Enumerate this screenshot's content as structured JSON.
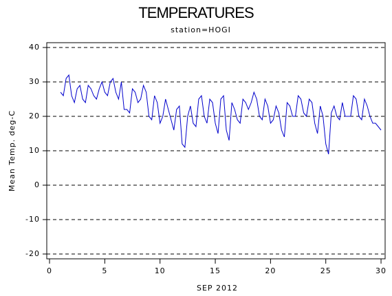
{
  "chart_data": {
    "type": "line",
    "title": "TEMPERATURES",
    "subtitle": "station=HOGI",
    "x_label": "SEP 2012",
    "y_label": "Mean Temp. deg-C",
    "xlim": [
      -0.25,
      30.37
    ],
    "ylim": [
      -21.4,
      41.4
    ],
    "xticks": [
      0,
      5,
      10,
      15,
      20,
      25,
      30
    ],
    "yticks": [
      -20,
      -10,
      0,
      10,
      20,
      30,
      40
    ],
    "grid": true,
    "x": [
      1,
      1.25,
      1.5,
      1.75,
      2,
      2.25,
      2.5,
      2.75,
      3,
      3.25,
      3.5,
      3.75,
      4,
      4.25,
      4.5,
      4.75,
      5,
      5.25,
      5.5,
      5.75,
      6,
      6.25,
      6.5,
      6.75,
      7,
      7.25,
      7.5,
      7.75,
      8,
      8.25,
      8.5,
      8.75,
      9,
      9.25,
      9.5,
      9.75,
      10,
      10.25,
      10.5,
      10.75,
      11,
      11.25,
      11.5,
      11.75,
      12,
      12.25,
      12.5,
      12.75,
      13,
      13.25,
      13.5,
      13.75,
      14,
      14.25,
      14.5,
      14.75,
      15,
      15.25,
      15.5,
      15.75,
      16,
      16.25,
      16.5,
      16.75,
      17,
      17.25,
      17.5,
      17.75,
      18,
      18.25,
      18.5,
      18.75,
      19,
      19.25,
      19.5,
      19.75,
      20,
      20.25,
      20.5,
      20.75,
      21,
      21.25,
      21.5,
      21.75,
      22,
      22.25,
      22.5,
      22.75,
      23,
      23.25,
      23.5,
      23.75,
      24,
      24.25,
      24.5,
      24.75,
      25,
      25.25,
      25.5,
      25.75,
      26,
      26.25,
      26.5,
      26.75,
      27,
      27.25,
      27.5,
      27.75,
      28,
      28.25,
      28.5,
      28.75,
      29,
      29.25,
      29.5,
      29.75,
      30
    ],
    "series": [
      {
        "name": "Mean Temp",
        "color": "#0000cc",
        "values": [
          27,
          26,
          31,
          32,
          26,
          24,
          28,
          29,
          25,
          24,
          29,
          28,
          26,
          25,
          28,
          30,
          27,
          26,
          30,
          31,
          27,
          25,
          30,
          22,
          22,
          21,
          28,
          27,
          24,
          25,
          29,
          27,
          20,
          19,
          26,
          24,
          18,
          20,
          25,
          22,
          19,
          16,
          22,
          23,
          12,
          11,
          20,
          23,
          18,
          17,
          25,
          26,
          20,
          18,
          25,
          24,
          18,
          15,
          25,
          26,
          16,
          13,
          24,
          22,
          19,
          18,
          25,
          24,
          22,
          24,
          27,
          25,
          20,
          19,
          25,
          23,
          18,
          19,
          23,
          21,
          16,
          14,
          24,
          23,
          20,
          20,
          26,
          25,
          21,
          20,
          25,
          24,
          18,
          15,
          23,
          20,
          12,
          9,
          21,
          23,
          20,
          19,
          24,
          20,
          20,
          20,
          26,
          25,
          20,
          19,
          25,
          23,
          20,
          18,
          18,
          17,
          16
        ]
      }
    ]
  }
}
